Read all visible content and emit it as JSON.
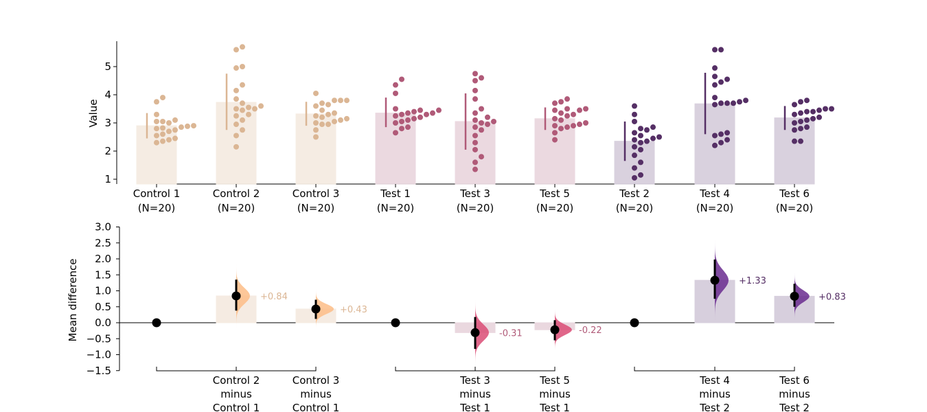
{
  "chart_data": [
    {
      "type": "bar",
      "ylabel": "Value",
      "ylim": [
        0.85,
        5.9
      ],
      "yticks": [
        "1",
        "2",
        "3",
        "4",
        "5"
      ],
      "groups": [
        {
          "name": "Control 1",
          "n": "(N=20)",
          "mean": 2.9,
          "ci": [
            2.45,
            3.35
          ],
          "points": [
            2.3,
            2.35,
            2.4,
            2.45,
            2.55,
            2.6,
            2.7,
            2.75,
            2.8,
            2.82,
            2.85,
            2.88,
            2.9,
            3.0,
            3.05,
            3.05,
            3.1,
            3.3,
            3.75,
            3.9
          ]
        },
        {
          "name": "Control 2",
          "n": "(N=20)",
          "mean": 3.73,
          "ci": [
            2.75,
            4.75
          ],
          "points": [
            2.15,
            2.55,
            2.75,
            2.95,
            3.1,
            3.25,
            3.3,
            3.45,
            3.5,
            3.5,
            3.55,
            3.6,
            3.7,
            3.85,
            4.15,
            4.35,
            4.95,
            5.0,
            5.6,
            5.7
          ]
        },
        {
          "name": "Control 3",
          "n": "(N=20)",
          "mean": 3.32,
          "ci": [
            2.9,
            3.75
          ],
          "points": [
            2.5,
            2.75,
            2.95,
            2.95,
            3.0,
            3.05,
            3.1,
            3.15,
            3.2,
            3.25,
            3.3,
            3.35,
            3.45,
            3.6,
            3.65,
            3.7,
            3.8,
            3.8,
            3.8,
            4.05
          ]
        },
        {
          "name": "Test 1",
          "n": "(N=20)",
          "mean": 3.35,
          "ci": [
            2.85,
            3.9
          ],
          "points": [
            2.65,
            2.8,
            2.85,
            3.0,
            3.05,
            3.1,
            3.15,
            3.2,
            3.25,
            3.3,
            3.3,
            3.35,
            3.4,
            3.45,
            3.45,
            3.5,
            4.05,
            4.35,
            4.55,
            3.35
          ]
        },
        {
          "name": "Test 3",
          "n": "(N=20)",
          "mean": 3.05,
          "ci": [
            2.05,
            4.05
          ],
          "points": [
            1.35,
            1.6,
            1.8,
            2.05,
            2.3,
            2.55,
            2.75,
            2.85,
            2.95,
            3.0,
            3.05,
            3.1,
            3.2,
            3.35,
            3.5,
            3.85,
            4.15,
            4.5,
            4.6,
            4.75
          ]
        },
        {
          "name": "Test 5",
          "n": "(N=20)",
          "mean": 3.15,
          "ci": [
            2.75,
            3.55
          ],
          "points": [
            2.4,
            2.65,
            2.8,
            2.85,
            2.9,
            2.9,
            2.95,
            3.0,
            3.1,
            3.15,
            3.25,
            3.3,
            3.35,
            3.45,
            3.45,
            3.5,
            3.5,
            3.7,
            3.75,
            3.85
          ]
        },
        {
          "name": "Test 2",
          "n": "(N=20)",
          "mean": 2.35,
          "ci": [
            1.65,
            3.05
          ],
          "points": [
            1.05,
            1.15,
            1.4,
            1.6,
            1.85,
            2.05,
            2.15,
            2.3,
            2.35,
            2.4,
            2.45,
            2.55,
            2.65,
            2.75,
            2.8,
            2.85,
            3.05,
            3.3,
            3.6,
            2.5
          ]
        },
        {
          "name": "Test 4",
          "n": "(N=20)",
          "mean": 3.68,
          "ci": [
            2.6,
            4.78
          ],
          "points": [
            2.2,
            2.3,
            2.4,
            2.55,
            2.6,
            2.65,
            3.65,
            3.7,
            3.7,
            3.75,
            3.8,
            3.9,
            4.35,
            4.45,
            4.55,
            4.65,
            4.95,
            5.6,
            5.6,
            3.7
          ]
        },
        {
          "name": "Test 6",
          "n": "(N=20)",
          "mean": 3.18,
          "ci": [
            2.75,
            3.6
          ],
          "points": [
            2.35,
            2.35,
            2.75,
            2.8,
            2.85,
            3.0,
            3.05,
            3.1,
            3.15,
            3.2,
            3.3,
            3.35,
            3.4,
            3.4,
            3.45,
            3.5,
            3.65,
            3.75,
            3.8,
            3.5
          ]
        }
      ]
    },
    {
      "type": "bar",
      "ylabel": "Mean difference",
      "ylim": [
        -1.5,
        3.0
      ],
      "yticks": [
        "3.0",
        "2.5",
        "2.0",
        "1.5",
        "1.0",
        "0.5",
        "0.0",
        "−0.5",
        "−1.0",
        "−1.5"
      ],
      "ytick_values": [
        3.0,
        2.5,
        2.0,
        1.5,
        1.0,
        0.5,
        0.0,
        -0.5,
        -1.0,
        -1.5
      ],
      "comparisons": [
        {
          "line1": "Control 2",
          "line2": "minus",
          "line3": "Control 1",
          "value": 0.84,
          "label": "+0.84",
          "ci": [
            0.38,
            1.35
          ]
        },
        {
          "line1": "Control 3",
          "line2": "minus",
          "line3": "Control 1",
          "value": 0.43,
          "label": "+0.43",
          "ci": [
            0.12,
            0.72
          ]
        },
        {
          "line1": "Test 3",
          "line2": "minus",
          "line3": "Test 1",
          "value": -0.31,
          "label": "-0.31",
          "ci": [
            -0.82,
            0.18
          ]
        },
        {
          "line1": "Test 5",
          "line2": "minus",
          "line3": "Test 1",
          "value": -0.22,
          "label": "-0.22",
          "ci": [
            -0.55,
            0.08
          ]
        },
        {
          "line1": "Test 4",
          "line2": "minus",
          "line3": "Test 2",
          "value": 1.33,
          "label": "+1.33",
          "ci": [
            0.75,
            1.98
          ]
        },
        {
          "line1": "Test 6",
          "line2": "minus",
          "line3": "Test 2",
          "value": 0.83,
          "label": "+0.83",
          "ci": [
            0.5,
            1.22
          ]
        }
      ]
    }
  ],
  "colors": {
    "control": "#dbb694",
    "control_bar": "#f5ebe2",
    "control_dist": "#fdbd87",
    "test_a": "#b05a78",
    "test_a_bar": "#ead8df",
    "test_a_dist": "#db4c75",
    "test_b": "#552f65",
    "test_b_bar": "#d7cfdd",
    "test_b_dist": "#6a2b8f"
  }
}
